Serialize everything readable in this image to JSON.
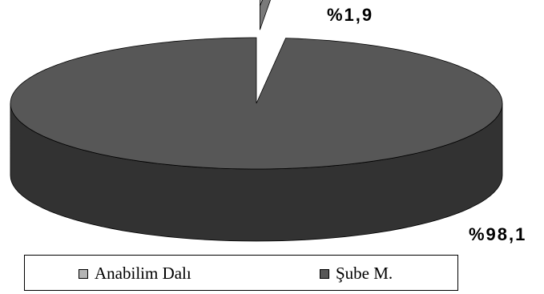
{
  "chart_data": {
    "type": "pie",
    "title": "",
    "style": "3d-exploded",
    "categories": [
      "Anabilim Dalı",
      "Şube M."
    ],
    "values": [
      1.9,
      98.1
    ],
    "data_labels": [
      "%1,9",
      "%98,1"
    ],
    "colors": [
      "#b4b4b4",
      "#575757"
    ],
    "side_colors": [
      "#7a7a7a",
      "#323232"
    ],
    "legend_position": "bottom"
  }
}
